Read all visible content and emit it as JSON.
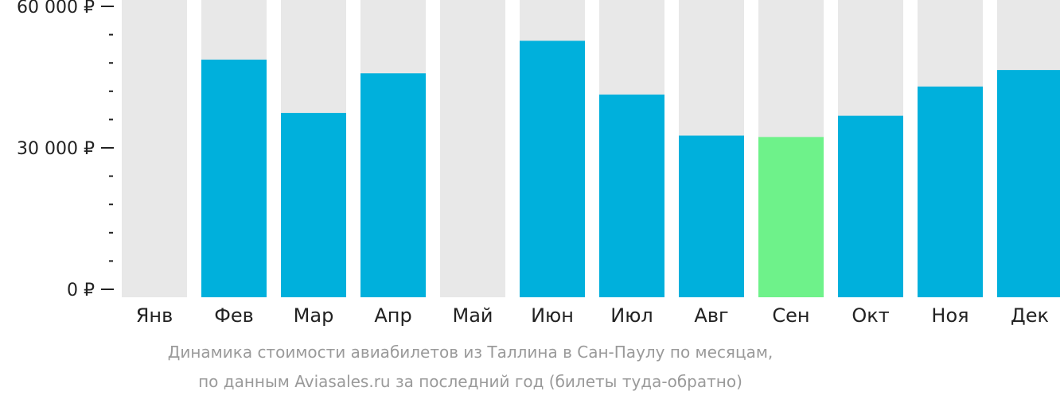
{
  "chart_data": {
    "type": "bar",
    "categories": [
      "Янв",
      "Фев",
      "Мар",
      "Апр",
      "Май",
      "Июн",
      "Июл",
      "Авг",
      "Сен",
      "Окт",
      "Ноя",
      "Дек"
    ],
    "values": [
      null,
      48700,
      37400,
      45800,
      null,
      52700,
      41300,
      32600,
      32300,
      36800,
      43000,
      46500
    ],
    "highlight_index": 8,
    "ylim": [
      0,
      60000
    ],
    "yticks": [
      {
        "value": 0,
        "label": "0 ₽"
      },
      {
        "value": 30000,
        "label": "30 000 ₽"
      },
      {
        "value": 60000,
        "label": "60 000 ₽"
      }
    ],
    "minor_tick_step": 6000,
    "colors": {
      "bar": "#00b0dc",
      "highlight": "#6ef28a",
      "background_bar": "#e8e8e8",
      "axis_text": "#222222"
    },
    "caption_lines": [
      "Динамика стоимости авиабилетов из Таллина в Сан-Паулу по месяцам,",
      "по данным Aviasales.ru за последний год (билеты туда-обратно)"
    ]
  }
}
